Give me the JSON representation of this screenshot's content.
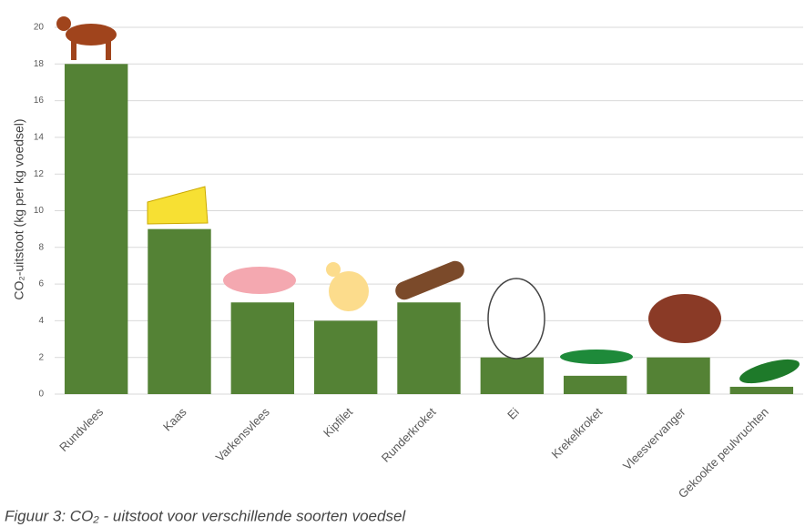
{
  "chart_data": {
    "type": "bar",
    "caption": "Figuur 3: CO₂ - uitstoot voor verschillende soorten voedsel",
    "y_label": "CO₂-uitstoot (kg per kg voedsel)",
    "categories": [
      "Rundvlees",
      "Kaas",
      "Varkensvlees",
      "Kipfilet",
      "Runderkroket",
      "Ei",
      "Krekelkroket",
      "Vleesvervanger",
      "Gekookte peulvruchten"
    ],
    "values": [
      18,
      9,
      5,
      4,
      5,
      2,
      1,
      2,
      0.4
    ],
    "color": "#548235",
    "ylim": [
      0,
      20
    ],
    "yticks": [
      0,
      2,
      4,
      6,
      8,
      10,
      12,
      14,
      16,
      18,
      20
    ],
    "grid": true
  }
}
